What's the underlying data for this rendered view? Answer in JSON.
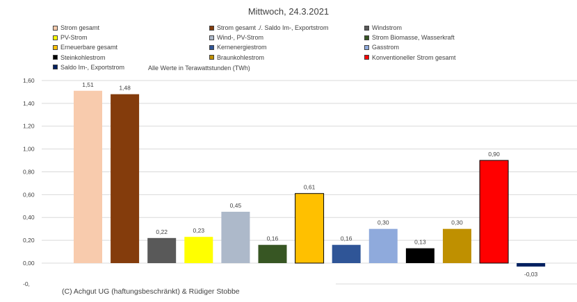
{
  "chart_data": {
    "type": "bar",
    "title": "Mittwoch,  24.3.2021",
    "note": "Alle Werte in Terawattstunden (TWh)",
    "copyright": "(C) Achgut UG (haftungsbeschränkt) & Rüdiger Stobbe",
    "ylim": [
      -0.1,
      1.6
    ],
    "yticks": [
      "1,60",
      "1,40",
      "1,20",
      "1,00",
      "0,80",
      "0,60",
      "0,40",
      "0,20",
      "0,00",
      "-0,"
    ],
    "ytick_values": [
      1.6,
      1.4,
      1.2,
      1.0,
      0.8,
      0.6,
      0.4,
      0.2,
      0.0,
      -0.2
    ],
    "grid": true,
    "legend_position": "top",
    "series": [
      {
        "name": "Strom gesamt",
        "value": 1.51,
        "label": "1,51",
        "color": "#f8cbad"
      },
      {
        "name": "Strom gesamt ./. Saldo Im-, Exportstrom",
        "value": 1.48,
        "label": "1,48",
        "color": "#843c0c"
      },
      {
        "name": "Windstrom",
        "value": 0.22,
        "label": "0,22",
        "color": "#595959"
      },
      {
        "name": "PV-Strom",
        "value": 0.23,
        "label": "0,23",
        "color": "#ffff00"
      },
      {
        "name": "Wind-, PV-Strom",
        "value": 0.45,
        "label": "0,45",
        "color": "#adb9ca"
      },
      {
        "name": "Strom Biomasse, Wasserkraft",
        "value": 0.16,
        "label": "0,16",
        "color": "#375623"
      },
      {
        "name": "Erneuerbare gesamt",
        "value": 0.61,
        "label": "0,61",
        "color": "#ffc000"
      },
      {
        "name": "Kernenergiestrom",
        "value": 0.16,
        "label": "0,16",
        "color": "#2f5597"
      },
      {
        "name": "Gasstrom",
        "value": 0.3,
        "label": "0,30",
        "color": "#8faadc"
      },
      {
        "name": "Steinkohlestrom",
        "value": 0.13,
        "label": "0,13",
        "color": "#000000"
      },
      {
        "name": "Braunkohlestrom",
        "value": 0.3,
        "label": "0,30",
        "color": "#bf9000"
      },
      {
        "name": "Konventioneller Strom gesamt",
        "value": 0.9,
        "label": "0,90",
        "color": "#ff0000"
      },
      {
        "name": "Saldo Im-, Exportstrom",
        "value": -0.03,
        "label": "-0,03",
        "color": "#002060"
      }
    ]
  }
}
